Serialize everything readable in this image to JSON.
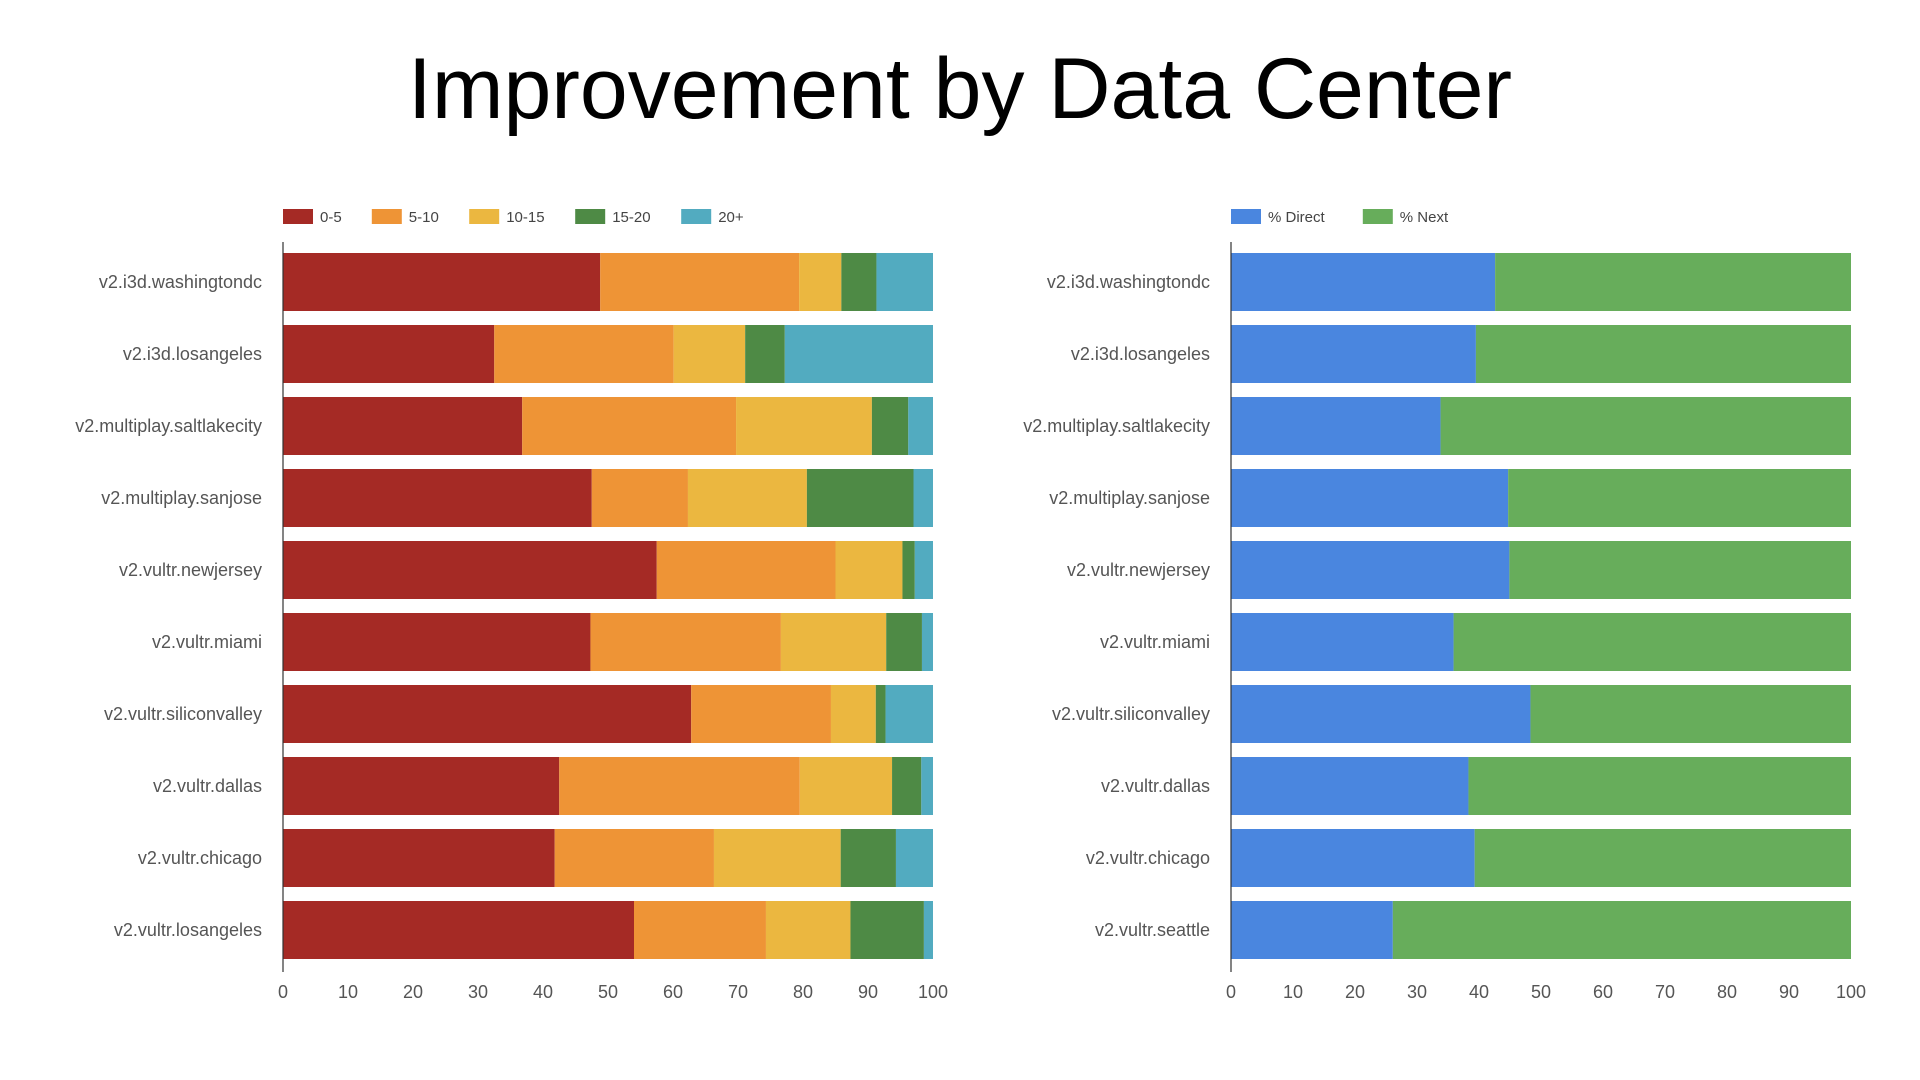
{
  "page": {
    "title": "Improvement by Data Center"
  },
  "chart_data": [
    {
      "type": "bar",
      "orientation": "horizontal",
      "stacked": true,
      "title": "",
      "xlabel": "",
      "ylabel": "",
      "xlim": [
        0,
        100
      ],
      "xticks": [
        0,
        10,
        20,
        30,
        40,
        50,
        60,
        70,
        80,
        90,
        100
      ],
      "legend_position": "top-left",
      "grid": false,
      "categories": [
        "v2.i3d.washingtondc",
        "v2.i3d.losangeles",
        "v2.multiplay.saltlakecity",
        "v2.multiplay.sanjose",
        "v2.vultr.newjersey",
        "v2.vultr.miami",
        "v2.vultr.siliconvalley",
        "v2.vultr.dallas",
        "v2.vultr.chicago",
        "v2.vultr.losangeles"
      ],
      "series": [
        {
          "name": "0-5",
          "color": "#a52a25",
          "values": [
            48.8,
            32.5,
            36.8,
            47.5,
            57.5,
            47.3,
            62.8,
            42.5,
            41.8,
            54.0
          ]
        },
        {
          "name": "5-10",
          "color": "#ee9436",
          "values": [
            30.6,
            27.6,
            32.9,
            14.8,
            27.5,
            29.3,
            21.5,
            37.0,
            24.5,
            20.3
          ]
        },
        {
          "name": "10-15",
          "color": "#ebb740",
          "values": [
            6.5,
            11.0,
            20.9,
            18.3,
            10.3,
            16.2,
            6.9,
            14.2,
            19.5,
            13.0
          ]
        },
        {
          "name": "15-20",
          "color": "#4e8a45",
          "values": [
            5.4,
            6.1,
            5.6,
            16.4,
            1.9,
            5.5,
            1.5,
            4.5,
            8.5,
            11.3
          ]
        },
        {
          "name": "20+",
          "color": "#52abc0",
          "values": [
            8.7,
            22.8,
            3.8,
            3.0,
            2.8,
            1.7,
            7.3,
            1.8,
            5.7,
            1.4
          ]
        }
      ]
    },
    {
      "type": "bar",
      "orientation": "horizontal",
      "stacked": true,
      "title": "",
      "xlabel": "",
      "ylabel": "",
      "xlim": [
        0,
        100
      ],
      "xticks": [
        0,
        10,
        20,
        30,
        40,
        50,
        60,
        70,
        80,
        90,
        100
      ],
      "legend_position": "top-left",
      "grid": false,
      "categories": [
        "v2.i3d.washingtondc",
        "v2.i3d.losangeles",
        "v2.multiplay.saltlakecity",
        "v2.multiplay.sanjose",
        "v2.vultr.newjersey",
        "v2.vultr.miami",
        "v2.vultr.siliconvalley",
        "v2.vultr.dallas",
        "v2.vultr.chicago",
        "v2.vultr.seattle"
      ],
      "series": [
        {
          "name": "% Direct",
          "color": "#4a86df",
          "values": [
            42.6,
            39.5,
            33.8,
            44.7,
            44.9,
            35.9,
            48.3,
            38.3,
            39.3,
            26.1
          ]
        },
        {
          "name": "% Next",
          "color": "#67ad5b",
          "values": [
            57.4,
            60.5,
            66.2,
            55.3,
            55.1,
            64.1,
            51.7,
            61.7,
            60.7,
            73.9
          ]
        }
      ]
    }
  ]
}
